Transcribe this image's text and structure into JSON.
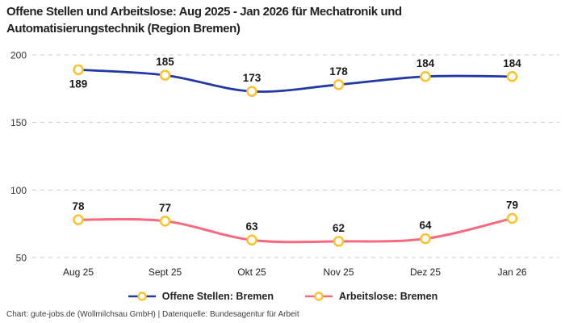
{
  "title": "Offene Stellen und Arbeitslose: Aug 2025 - Jan 2026 für Mechatronik und Automatisierungstechnik (Region Bremen)",
  "footer": "Chart: gute-jobs.de (Wollmilchsau GmbH) | Datenquelle: Bundesagentur für Arbeit",
  "colors": {
    "open_positions": "#2238A4",
    "unemployed": "#F8697F",
    "marker_stroke": "#FCC22E",
    "marker_fill": "#FFFFFF",
    "grid": "#CCCCCC",
    "point_label": "#1A1A1A",
    "axis_text": "#333333",
    "footer_text": "#3C3C3C"
  },
  "chart_data": {
    "type": "line",
    "title": "Offene Stellen und Arbeitslose: Aug 2025 - Jan 2026 für Mechatronik und Automatisierungstechnik (Region Bremen)",
    "categories": [
      "Aug 25",
      "Sept 25",
      "Okt 25",
      "Nov 25",
      "Dez 25",
      "Jan 26"
    ],
    "series": [
      {
        "name": "Offene Stellen: Bremen",
        "values": [
          189,
          185,
          173,
          178,
          184,
          184
        ],
        "color_key": "open_positions",
        "label_positions": [
          "below",
          "above",
          "above",
          "above",
          "above",
          "above"
        ]
      },
      {
        "name": "Arbeitslose: Bremen",
        "values": [
          78,
          77,
          63,
          62,
          64,
          79
        ],
        "color_key": "unemployed",
        "label_positions": [
          "above",
          "above",
          "above",
          "above",
          "above",
          "above"
        ]
      }
    ],
    "yticks": [
      50,
      100,
      150,
      200
    ],
    "ylim": [
      50,
      200
    ],
    "grid": "dashed-horizontal",
    "legend_position": "bottom",
    "marker": "circle-yellow-white",
    "xlabel": "",
    "ylabel": ""
  }
}
